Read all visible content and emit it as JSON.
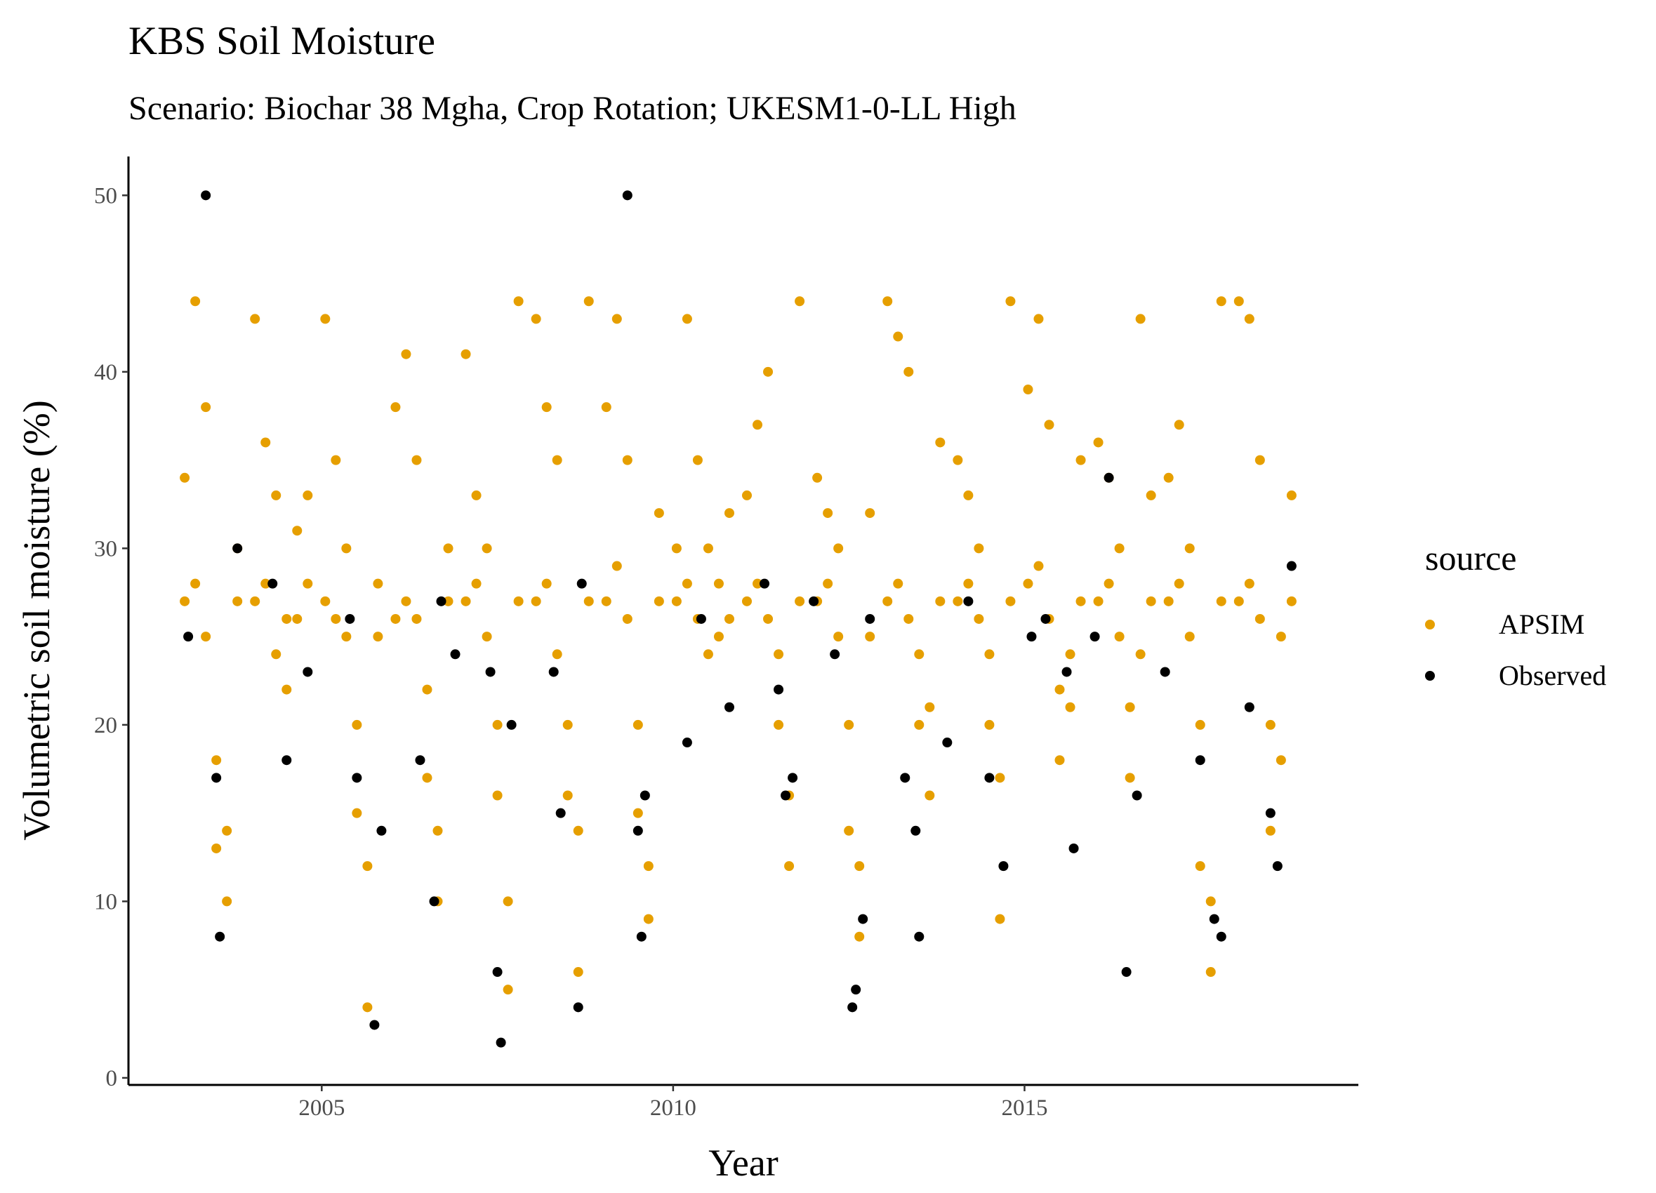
{
  "chart_data": {
    "type": "scatter",
    "title": "KBS Soil Moisture",
    "subtitle": "Scenario: Biochar 38 Mgha, Crop Rotation; UKESM1-0-LL High",
    "x_label": "Year",
    "y_label": "Volumetric soil moisture (%)",
    "legend_title": "source",
    "legend": "right",
    "xlim": [
      2002.25,
      2019.75
    ],
    "xticks": [
      2005,
      2010,
      2015
    ],
    "ylim": [
      -0.4,
      52.2
    ],
    "yticks": [
      0,
      10,
      20,
      30,
      40,
      50
    ],
    "series": [
      {
        "name": "APSIM",
        "color": "#E69F00",
        "x": [
          2003.05,
          2003.05,
          2003.2,
          2003.2,
          2003.35,
          2003.35,
          2003.5,
          2003.5,
          2003.65,
          2003.65,
          2003.8,
          2003.8,
          2004.05,
          2004.05,
          2004.2,
          2004.2,
          2004.35,
          2004.35,
          2004.5,
          2004.5,
          2004.65,
          2004.65,
          2004.8,
          2004.8,
          2005.05,
          2005.05,
          2005.2,
          2005.2,
          2005.35,
          2005.35,
          2005.5,
          2005.5,
          2005.65,
          2005.65,
          2005.8,
          2005.8,
          2006.05,
          2006.05,
          2006.2,
          2006.2,
          2006.35,
          2006.35,
          2006.5,
          2006.5,
          2006.65,
          2006.65,
          2006.8,
          2006.8,
          2007.05,
          2007.05,
          2007.2,
          2007.2,
          2007.35,
          2007.35,
          2007.5,
          2007.5,
          2007.65,
          2007.65,
          2007.8,
          2007.8,
          2008.05,
          2008.05,
          2008.2,
          2008.2,
          2008.35,
          2008.35,
          2008.5,
          2008.5,
          2008.65,
          2008.65,
          2008.8,
          2008.8,
          2009.05,
          2009.05,
          2009.2,
          2009.2,
          2009.35,
          2009.35,
          2009.5,
          2009.5,
          2009.65,
          2009.65,
          2009.8,
          2009.8,
          2010.05,
          2010.05,
          2010.2,
          2010.2,
          2010.35,
          2010.35,
          2010.5,
          2010.5,
          2010.65,
          2010.65,
          2010.8,
          2010.8,
          2011.05,
          2011.05,
          2011.2,
          2011.2,
          2011.35,
          2011.35,
          2011.5,
          2011.5,
          2011.65,
          2011.65,
          2011.8,
          2011.8,
          2012.05,
          2012.05,
          2012.2,
          2012.2,
          2012.35,
          2012.35,
          2012.5,
          2012.5,
          2012.65,
          2012.65,
          2012.8,
          2012.8,
          2013.05,
          2013.05,
          2013.2,
          2013.2,
          2013.35,
          2013.35,
          2013.5,
          2013.5,
          2013.65,
          2013.65,
          2013.8,
          2013.8,
          2014.05,
          2014.05,
          2014.2,
          2014.2,
          2014.35,
          2014.35,
          2014.5,
          2014.5,
          2014.65,
          2014.65,
          2014.8,
          2014.8,
          2015.05,
          2015.05,
          2015.2,
          2015.2,
          2015.35,
          2015.35,
          2015.5,
          2015.5,
          2015.65,
          2015.65,
          2015.8,
          2015.8,
          2016.05,
          2016.05,
          2016.2,
          2016.2,
          2016.35,
          2016.35,
          2016.5,
          2016.5,
          2016.65,
          2016.65,
          2016.8,
          2016.8,
          2017.05,
          2017.05,
          2017.2,
          2017.2,
          2017.35,
          2017.35,
          2017.5,
          2017.5,
          2017.65,
          2017.65,
          2017.8,
          2017.8,
          2018.05,
          2018.05,
          2018.2,
          2018.2,
          2018.35,
          2018.35,
          2018.5,
          2018.5,
          2018.65,
          2018.65,
          2018.8,
          2018.8
        ],
        "values": [
          27,
          34,
          28,
          44,
          25,
          38,
          18,
          13,
          14,
          10,
          27,
          30,
          27,
          43,
          28,
          36,
          24,
          33,
          22,
          26,
          26,
          31,
          28,
          33,
          27,
          43,
          26,
          35,
          25,
          30,
          20,
          15,
          12,
          4,
          25,
          28,
          26,
          38,
          27,
          41,
          26,
          35,
          22,
          17,
          14,
          10,
          27,
          30,
          27,
          41,
          28,
          33,
          25,
          30,
          20,
          16,
          10,
          5,
          27,
          44,
          27,
          43,
          28,
          38,
          24,
          35,
          20,
          16,
          14,
          6,
          27,
          44,
          27,
          38,
          29,
          43,
          26,
          35,
          20,
          15,
          12,
          9,
          27,
          32,
          27,
          30,
          28,
          43,
          26,
          35,
          24,
          30,
          25,
          28,
          26,
          32,
          27,
          33,
          28,
          37,
          26,
          40,
          24,
          20,
          16,
          12,
          27,
          44,
          27,
          34,
          28,
          32,
          25,
          30,
          20,
          14,
          12,
          8,
          25,
          32,
          27,
          44,
          28,
          42,
          26,
          40,
          24,
          20,
          21,
          16,
          27,
          36,
          27,
          35,
          28,
          33,
          26,
          30,
          24,
          20,
          17,
          9,
          27,
          44,
          28,
          39,
          29,
          43,
          26,
          37,
          22,
          18,
          24,
          21,
          27,
          35,
          27,
          36,
          28,
          34,
          25,
          30,
          21,
          17,
          24,
          43,
          27,
          33,
          27,
          34,
          28,
          37,
          25,
          30,
          20,
          12,
          10,
          6,
          27,
          44,
          27,
          44,
          28,
          43,
          26,
          35,
          20,
          14,
          25,
          18,
          27,
          33
        ]
      },
      {
        "name": "Observed",
        "color": "#000000",
        "x": [
          2003.1,
          2003.35,
          2003.5,
          2003.55,
          2003.8,
          2004.3,
          2004.5,
          2004.8,
          2005.4,
          2005.5,
          2005.75,
          2005.85,
          2006.4,
          2006.6,
          2006.7,
          2006.9,
          2007.4,
          2007.5,
          2007.55,
          2007.7,
          2008.3,
          2008.4,
          2008.65,
          2008.7,
          2009.35,
          2009.5,
          2009.55,
          2009.6,
          2010.2,
          2010.4,
          2010.8,
          2011.3,
          2011.5,
          2011.6,
          2011.7,
          2012.0,
          2012.3,
          2012.55,
          2012.6,
          2012.7,
          2012.8,
          2013.3,
          2013.45,
          2013.5,
          2013.9,
          2014.2,
          2014.5,
          2014.7,
          2015.1,
          2015.3,
          2015.6,
          2015.7,
          2016.0,
          2016.2,
          2016.45,
          2016.6,
          2017.0,
          2017.5,
          2017.7,
          2017.8,
          2018.2,
          2018.5,
          2018.6,
          2018.8
        ],
        "values": [
          25,
          50,
          17,
          8,
          30,
          28,
          18,
          23,
          26,
          17,
          3,
          14,
          18,
          10,
          27,
          24,
          23,
          6,
          2,
          20,
          23,
          15,
          4,
          28,
          50,
          14,
          8,
          16,
          19,
          26,
          21,
          28,
          22,
          16,
          17,
          27,
          24,
          4,
          5,
          9,
          26,
          17,
          14,
          8,
          19,
          27,
          17,
          12,
          25,
          26,
          23,
          13,
          25,
          34,
          6,
          16,
          23,
          18,
          9,
          8,
          21,
          15,
          12,
          29
        ]
      }
    ]
  }
}
